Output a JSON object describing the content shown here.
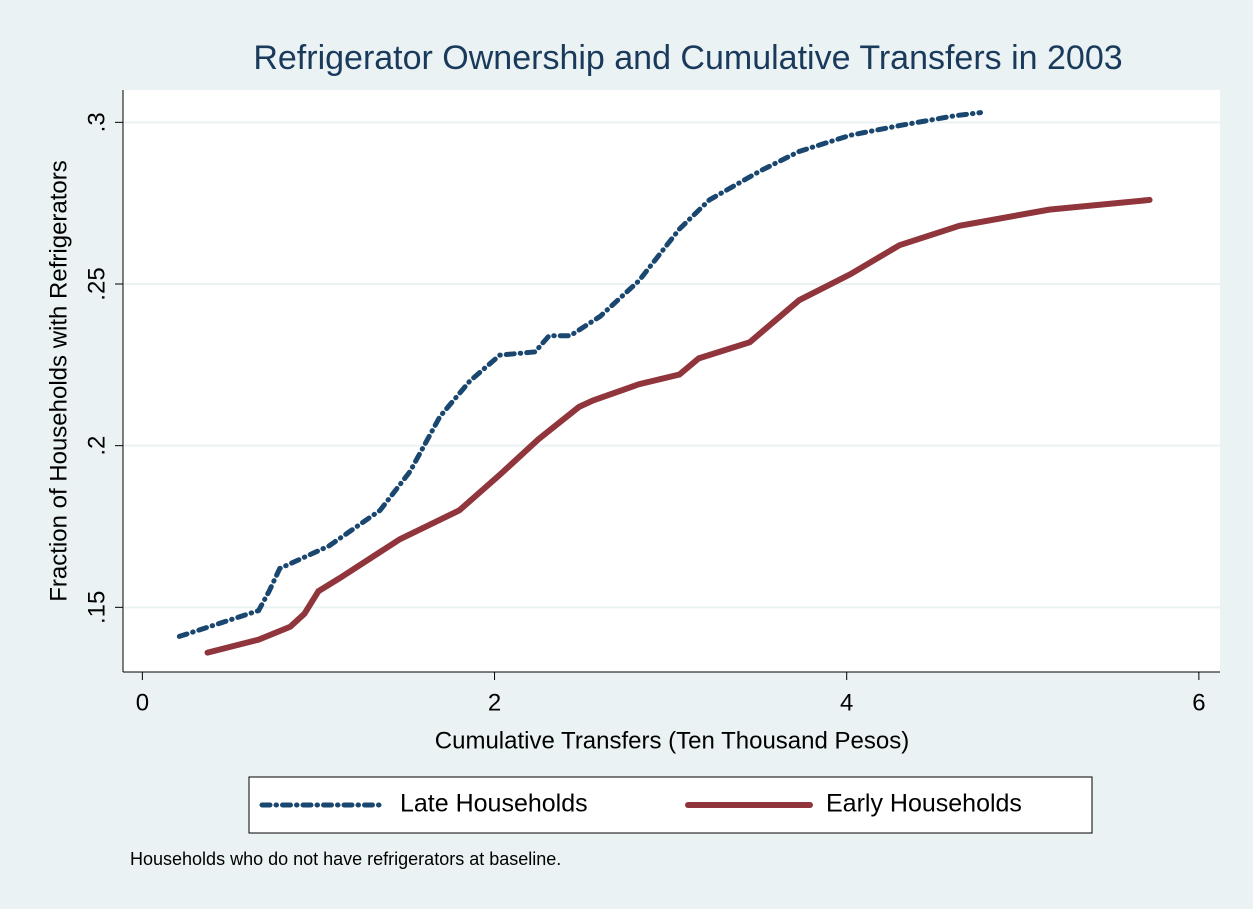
{
  "chart_data": {
    "type": "line",
    "title": "Refrigerator Ownership and Cumulative Transfers in 2003",
    "x_label": "Cumulative Transfers (Ten Thousand Pesos)",
    "y_label": "Fraction of Households with Refrigerators",
    "note": "Households who do not have refrigerators at baseline.",
    "xlim": [
      -0.11,
      6.12
    ],
    "ylim": [
      0.13,
      0.31
    ],
    "xticks": [
      0,
      2,
      4,
      6
    ],
    "yticks": [
      {
        "value": 0.15,
        "label": ".15"
      },
      {
        "value": 0.2,
        "label": ".2"
      },
      {
        "value": 0.25,
        "label": ".25"
      },
      {
        "value": 0.3,
        "label": ".3"
      }
    ],
    "grid": true,
    "legend": "bottom",
    "series": [
      {
        "name": "Late Households",
        "color": "#1a476f",
        "style": "dash-dot",
        "x": [
          0.21,
          0.66,
          0.72,
          0.78,
          1.06,
          1.35,
          1.52,
          1.69,
          1.86,
          2.03,
          2.23,
          2.31,
          2.43,
          2.6,
          2.82,
          3.05,
          3.22,
          3.51,
          3.73,
          4.02,
          4.3,
          4.61,
          4.76
        ],
        "values": [
          0.141,
          0.149,
          0.155,
          0.162,
          0.169,
          0.18,
          0.192,
          0.209,
          0.22,
          0.228,
          0.229,
          0.234,
          0.234,
          0.24,
          0.251,
          0.267,
          0.276,
          0.285,
          0.291,
          0.296,
          0.299,
          0.302,
          0.303
        ]
      },
      {
        "name": "Early Households",
        "color": "#90353b",
        "style": "solid",
        "x": [
          0.37,
          0.66,
          0.84,
          0.92,
          1.0,
          1.12,
          1.46,
          1.8,
          2.03,
          2.25,
          2.48,
          2.56,
          2.82,
          3.05,
          3.16,
          3.45,
          3.73,
          4.02,
          4.3,
          4.64,
          5.15,
          5.72
        ],
        "values": [
          0.136,
          0.14,
          0.144,
          0.148,
          0.155,
          0.159,
          0.171,
          0.18,
          0.191,
          0.202,
          0.212,
          0.214,
          0.219,
          0.222,
          0.227,
          0.232,
          0.245,
          0.253,
          0.262,
          0.268,
          0.273,
          0.276
        ]
      }
    ]
  }
}
